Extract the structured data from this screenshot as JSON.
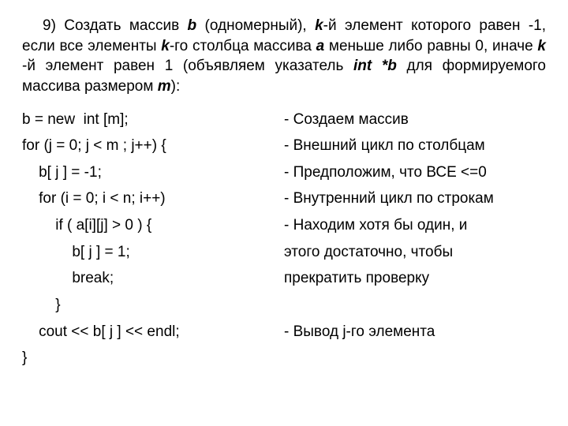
{
  "intro": {
    "num": "9",
    "text_before_b": ") Создать массив ",
    "b": "b",
    "text_after_b": " (одномерный), ",
    "k1": "k",
    "text_after_k1": "-й элемент которого равен -1, если все элементы ",
    "k2": "k",
    "text_after_k2": "-го столбца массива ",
    "a": "a",
    "text_after_a": " меньше либо равны 0, иначе ",
    "k3": "k",
    "text_after_k3": " -й элемент равен 1 (объявляем указатель ",
    "intb": "int *b",
    "text_after_intb": " для формируемого массива размером ",
    "m": "m",
    "text_after_m": "):"
  },
  "rows": [
    {
      "code": "b = new  int [m];",
      "note": "- Создаем массив"
    },
    {
      "code": "for (j = 0; j < m ; j++) {",
      "note": "- Внешний цикл по столбцам"
    },
    {
      "code": "    b[ j ] = -1;",
      "note": "- Предположим, что ВСЕ <=0"
    },
    {
      "code": "    for (i = 0; i < n; i++)",
      "note": "- Внутренний цикл по строкам"
    },
    {
      "code": "        if ( a[i][j] > 0 ) {",
      "note": "- Находим хотя бы один, и"
    },
    {
      "code": "            b[ j ] = 1;",
      "note": "  этого достаточно, чтобы"
    },
    {
      "code": "            break;",
      "note": "  прекратить проверку"
    },
    {
      "code": "        }",
      "note": ""
    },
    {
      "code": "    cout << b[ j ] << endl;",
      "note": "- Вывод j-го элемента"
    },
    {
      "code": "}",
      "note": ""
    }
  ]
}
